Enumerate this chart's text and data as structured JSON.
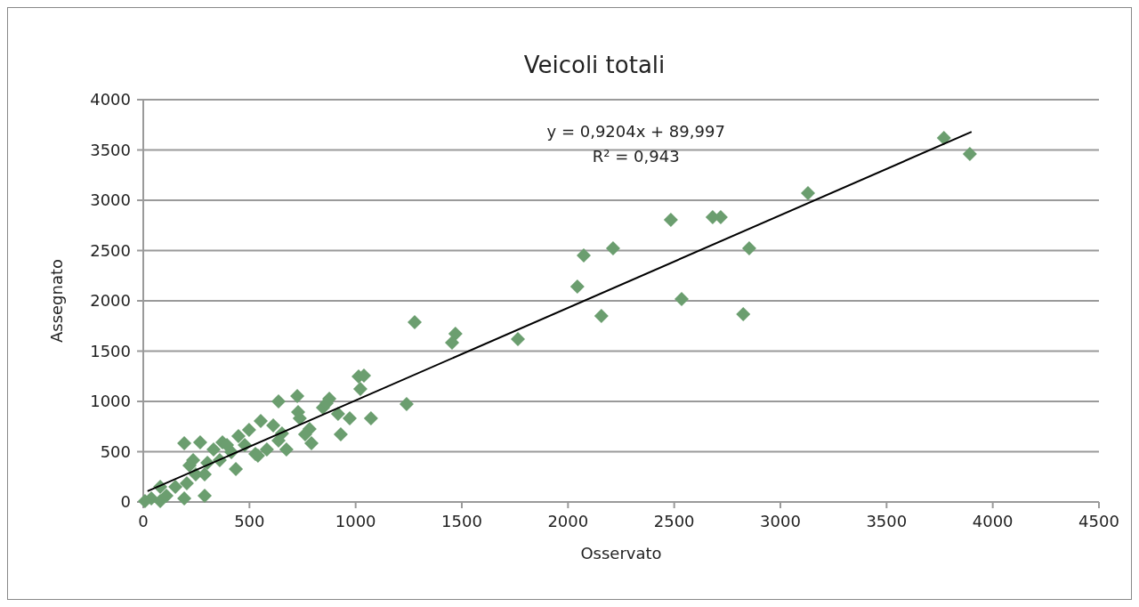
{
  "chart_data": {
    "type": "scatter",
    "title": "Veicoli totali",
    "xlabel": "Osservato",
    "ylabel": "Assegnato",
    "xlim": [
      0,
      4500
    ],
    "xticks": [
      0,
      500,
      1000,
      1500,
      2000,
      2500,
      3000,
      3500,
      4000,
      4500
    ],
    "ylim": [
      0,
      4000
    ],
    "yticks": [
      0,
      500,
      1000,
      1500,
      2000,
      2500,
      3000,
      3500,
      4000
    ],
    "grid": "y",
    "annotations": [
      "y = 0,9204x + 89,997",
      "R² = 0,943"
    ],
    "series": [
      {
        "marker": "diamond",
        "color": "#6b9e6f",
        "x": [
          3892,
          3770,
          3130,
          2853,
          2825,
          2719,
          2681,
          2484,
          2535,
          2212,
          2157,
          2074,
          2044,
          1764,
          1470,
          1454,
          1278,
          1240,
          637,
          725,
          729,
          737,
          783,
          792,
          762,
          876,
          846,
          930,
          972,
          1072,
          917,
          1022,
          1014,
          1039,
          553,
          612,
          653,
          637,
          674,
          498,
          448,
          528,
          373,
          415,
          360,
          436,
          235,
          268,
          193,
          218,
          247,
          289,
          205,
          151,
          80,
          193,
          289,
          38,
          80,
          8,
          109,
          863,
          331,
          394,
          582,
          540,
          478,
          302
        ],
        "values": [
          3460,
          3620,
          3070,
          2522,
          1867,
          2832,
          2832,
          2805,
          2018,
          2522,
          1850,
          2451,
          2142,
          1619,
          1673,
          1584,
          1788,
          973,
          1000,
          1053,
          894,
          832,
          726,
          584,
          673,
          1027,
          938,
          673,
          832,
          832,
          876,
          1124,
          1248,
          1257,
          805,
          761,
          681,
          611,
          522,
          717,
          655,
          478,
          593,
          496,
          416,
          327,
          416,
          593,
          584,
          363,
          274,
          274,
          186,
          150,
          150,
          35,
          62,
          35,
          9,
          9,
          62,
          982,
          522,
          566,
          522,
          460,
          566,
          389
        ]
      },
      {
        "type": "line",
        "color": "#000000",
        "x": [
          20,
          3900
        ],
        "values": [
          108,
          3680
        ]
      }
    ]
  }
}
